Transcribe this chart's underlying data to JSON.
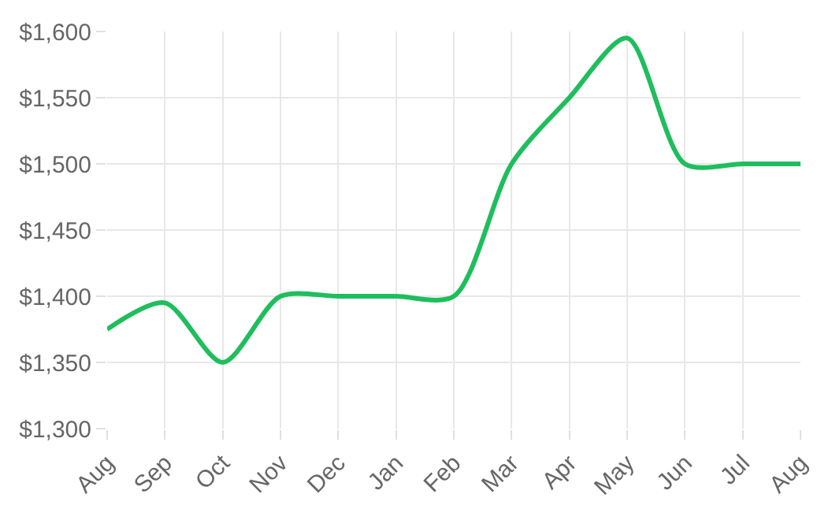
{
  "chart_data": {
    "type": "line",
    "categories": [
      "Aug",
      "Sep",
      "Oct",
      "Nov",
      "Dec",
      "Jan",
      "Feb",
      "Mar",
      "Apr",
      "May",
      "Jun",
      "Jul",
      "Aug"
    ],
    "series": [
      {
        "color": "#1fbe5d",
        "values": [
          1375,
          1395,
          1350,
          1400,
          1400,
          1400,
          1400,
          1500,
          1550,
          1595,
          1500,
          1500,
          1500
        ]
      }
    ],
    "ylim": [
      1300,
      1600
    ],
    "yticks": [
      {
        "value": 1300,
        "label": "$1,300"
      },
      {
        "value": 1350,
        "label": "$1,350"
      },
      {
        "value": 1400,
        "label": "$1,400"
      },
      {
        "value": 1450,
        "label": "$1,450"
      },
      {
        "value": 1500,
        "label": "$1,500"
      },
      {
        "value": 1550,
        "label": "$1,550"
      },
      {
        "value": 1600,
        "label": "$1,600"
      }
    ],
    "grid": true,
    "marker": "none",
    "line_style": "solid"
  }
}
